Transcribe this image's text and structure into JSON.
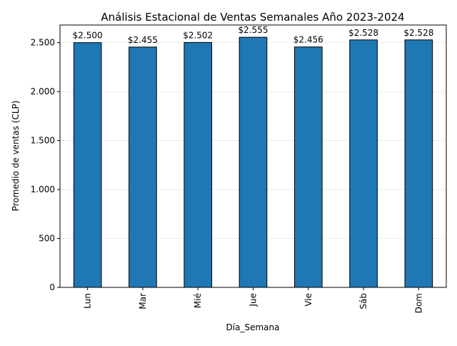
{
  "chart_data": {
    "type": "bar",
    "title": "Análisis Estacional de Ventas Semanales Año 2023-2024",
    "xlabel": "Día_Semana",
    "ylabel": "Promedio de ventas (CLP)",
    "categories": [
      "Lun",
      "Mar",
      "Mié",
      "Jue",
      "Vie",
      "Sáb",
      "Dom"
    ],
    "values": [
      2500,
      2455,
      2502,
      2555,
      2456,
      2528,
      2528
    ],
    "data_labels": [
      "$2.500",
      "$2.455",
      "$2.502",
      "$2.555",
      "$2.456",
      "$2.528",
      "$2.528"
    ],
    "ylim": [
      0,
      2680
    ],
    "yticks": [
      0,
      500,
      1000,
      1500,
      2000,
      2500
    ],
    "ytick_labels": [
      "0",
      "500",
      "1.000",
      "1.500",
      "2.000",
      "2.500"
    ],
    "grid": "horizontal, faint",
    "legend": "none",
    "colors": {
      "bar_fill": "#1f77b4",
      "bar_edge": "#000000",
      "grid": "#e6e6e6"
    }
  }
}
